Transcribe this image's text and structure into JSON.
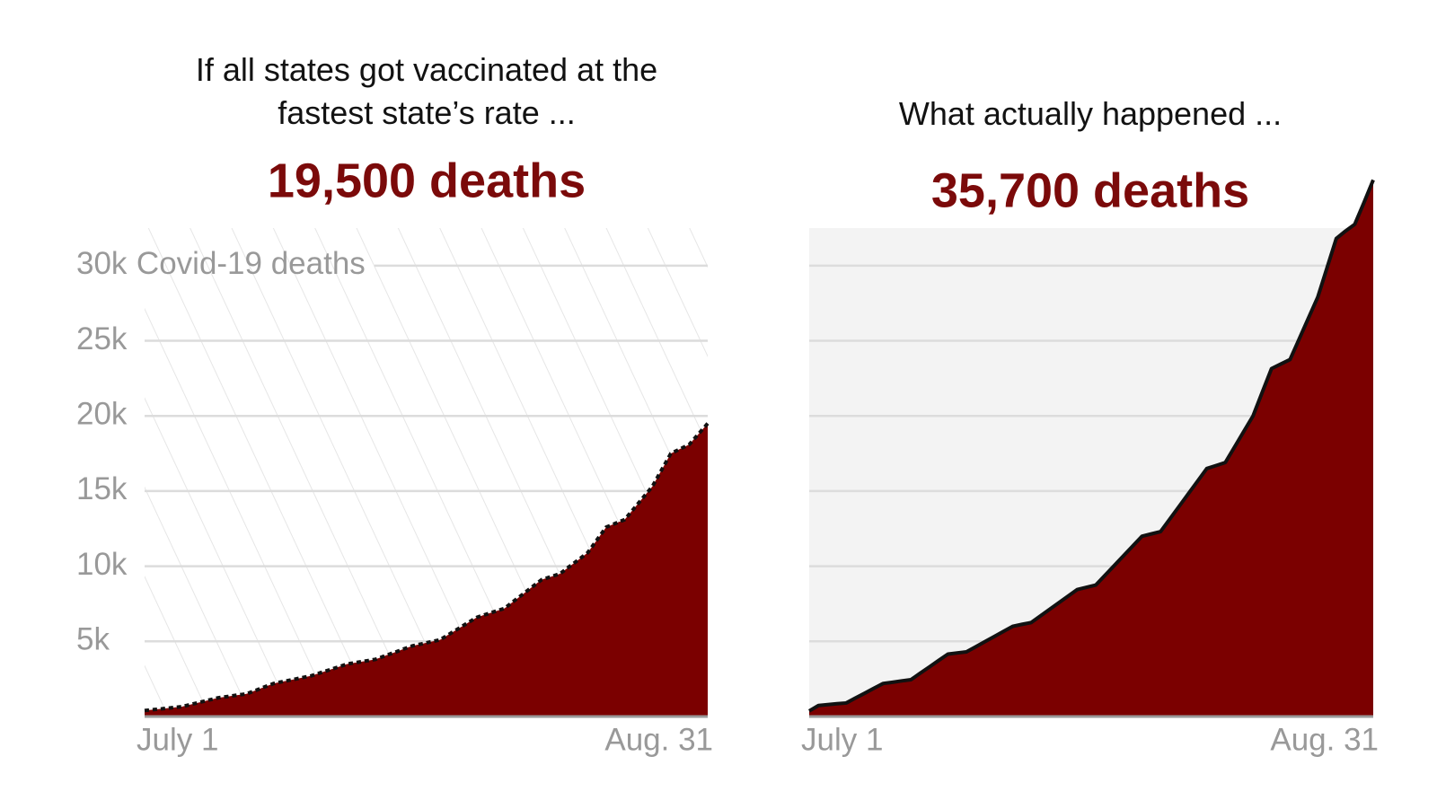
{
  "chart_data": [
    {
      "type": "area",
      "title": "If all states got vaccinated at the fastest state’s rate ...",
      "headline": "19,500 deaths",
      "y_label": "Covid-19 deaths",
      "categories": [
        "July 1",
        null,
        null,
        null,
        null,
        null,
        null,
        null,
        null,
        null,
        null,
        null,
        null,
        null,
        null,
        null,
        null,
        null,
        null,
        null,
        null,
        null,
        null,
        null,
        null,
        null,
        null,
        null,
        null,
        null,
        null,
        null,
        null,
        null,
        null,
        null,
        null,
        null,
        null,
        null,
        null,
        null,
        null,
        null,
        null,
        null,
        null,
        null,
        null,
        null,
        null,
        null,
        null,
        null,
        null,
        null,
        null,
        null,
        null,
        null,
        null,
        "Aug. 31"
      ],
      "values": [
        400,
        460,
        520,
        590,
        650,
        800,
        950,
        1100,
        1250,
        1330,
        1420,
        1500,
        1730,
        1970,
        2200,
        2330,
        2450,
        2580,
        2700,
        2900,
        3100,
        3300,
        3500,
        3600,
        3700,
        3800,
        4030,
        4250,
        4480,
        4700,
        4830,
        4970,
        5100,
        5480,
        5850,
        6230,
        6600,
        6800,
        7000,
        7200,
        7680,
        8150,
        8630,
        9100,
        9300,
        9500,
        9970,
        10430,
        10900,
        11750,
        12600,
        12850,
        13100,
        13830,
        14570,
        15300,
        16400,
        17500,
        17800,
        18100,
        18800,
        19500
      ],
      "color": "#7b0000",
      "line_color": "#111111",
      "line_style": "dotted",
      "background": "hatch",
      "ylim": [
        0,
        32500
      ],
      "yticks": [
        {
          "value": 5000,
          "label": "5k"
        },
        {
          "value": 10000,
          "label": "10k"
        },
        {
          "value": 15000,
          "label": "15k"
        },
        {
          "value": 20000,
          "label": "20k"
        },
        {
          "value": 25000,
          "label": "25k"
        },
        {
          "value": 30000,
          "label": "30k"
        }
      ],
      "grid": true
    },
    {
      "type": "area",
      "title": "What actually happened ...",
      "headline": "35,700 deaths",
      "categories": [
        "July 1",
        null,
        null,
        null,
        null,
        null,
        null,
        null,
        null,
        null,
        null,
        null,
        null,
        null,
        null,
        null,
        null,
        null,
        null,
        null,
        null,
        null,
        null,
        null,
        null,
        null,
        null,
        null,
        null,
        null,
        null,
        null,
        null,
        null,
        null,
        null,
        null,
        null,
        null,
        null,
        null,
        null,
        null,
        null,
        null,
        null,
        null,
        null,
        null,
        null,
        null,
        null,
        null,
        null,
        null,
        null,
        null,
        null,
        null,
        null,
        null,
        "Aug. 31"
      ],
      "values": [
        370,
        730,
        790,
        850,
        900,
        1230,
        1550,
        1880,
        2200,
        2280,
        2370,
        2450,
        2880,
        3300,
        3730,
        4150,
        4230,
        4300,
        4640,
        4980,
        5320,
        5660,
        6000,
        6130,
        6250,
        6690,
        7130,
        7570,
        8010,
        8450,
        8600,
        8750,
        9400,
        10050,
        10700,
        11350,
        12000,
        12150,
        12300,
        13140,
        13980,
        14820,
        15660,
        16500,
        16700,
        16900,
        17930,
        18970,
        20000,
        21580,
        23150,
        23450,
        23750,
        25130,
        26520,
        27900,
        29850,
        31800,
        32300,
        32750,
        34200,
        35700
      ],
      "color": "#7b0000",
      "line_color": "#111111",
      "line_style": "solid",
      "background": "#f3f3f3",
      "ylim": [
        0,
        32500
      ],
      "yticks": [
        5000,
        10000,
        15000,
        20000,
        25000,
        30000
      ],
      "grid": true
    }
  ]
}
